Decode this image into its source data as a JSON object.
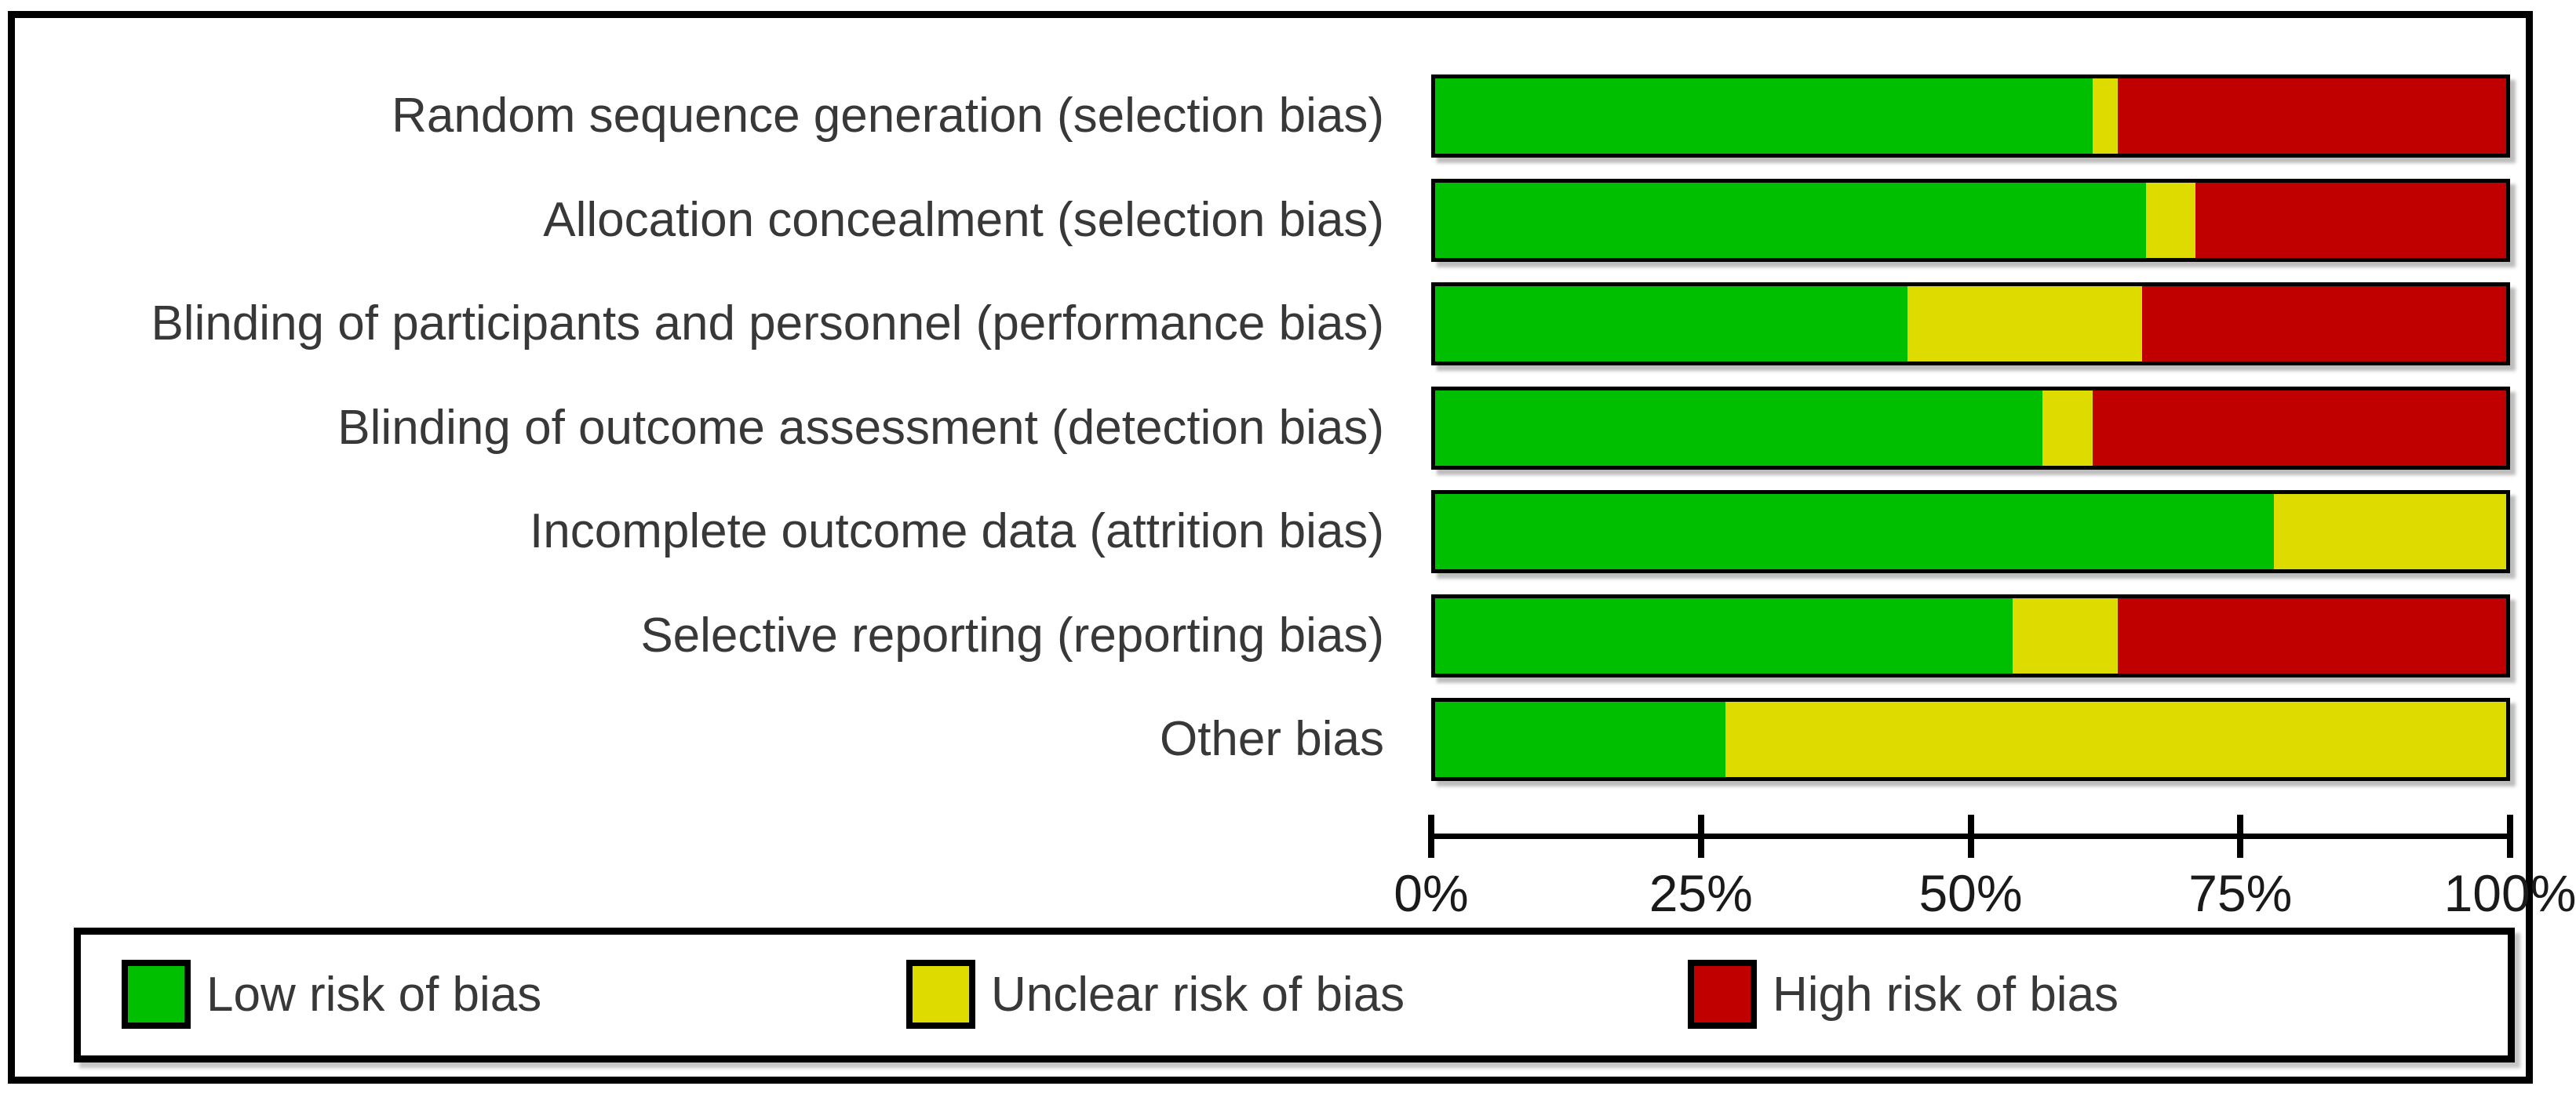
{
  "chart_data": {
    "type": "bar",
    "variant": "horizontal-stacked-percent",
    "title": "",
    "xlabel": "",
    "ylabel": "",
    "categories": [
      "Random sequence generation (selection bias)",
      "Allocation concealment (selection bias)",
      "Blinding of participants and personnel (performance bias)",
      "Blinding of outcome assessment (detection bias)",
      "Incomplete outcome data (attrition bias)",
      "Selective reporting (reporting bias)",
      "Other bias"
    ],
    "series": [
      {
        "name": "Low risk of bias",
        "key": "low-risk",
        "color": "#00BE00",
        "values": [
          61.4,
          66.4,
          44.1,
          56.7,
          78.3,
          53.9,
          27.1
        ]
      },
      {
        "name": "Unclear risk of bias",
        "key": "unclear-risk",
        "color": "#DEDB00",
        "values": [
          2.3,
          4.6,
          21.9,
          4.7,
          21.7,
          9.8,
          72.9
        ]
      },
      {
        "name": "High risk of bias",
        "key": "high-risk",
        "color": "#C00000",
        "values": [
          36.3,
          29.0,
          34.0,
          38.6,
          0,
          36.3,
          0
        ]
      }
    ],
    "x_axis": {
      "range": [
        0,
        100
      ],
      "unit": "%",
      "ticks": [
        "0%",
        "25%",
        "50%",
        "75%",
        "100%"
      ],
      "grid": false
    },
    "legend": {
      "position": "bottom",
      "entries": [
        "Low risk of bias",
        "Unclear risk of bias",
        "High risk of bias"
      ]
    }
  },
  "colors": {
    "low_risk": "#00BE00",
    "unclear_risk": "#DEDB00",
    "high_risk": "#C00000",
    "text": "#383838",
    "axis": "#000000",
    "background": "#FFFFFF"
  }
}
